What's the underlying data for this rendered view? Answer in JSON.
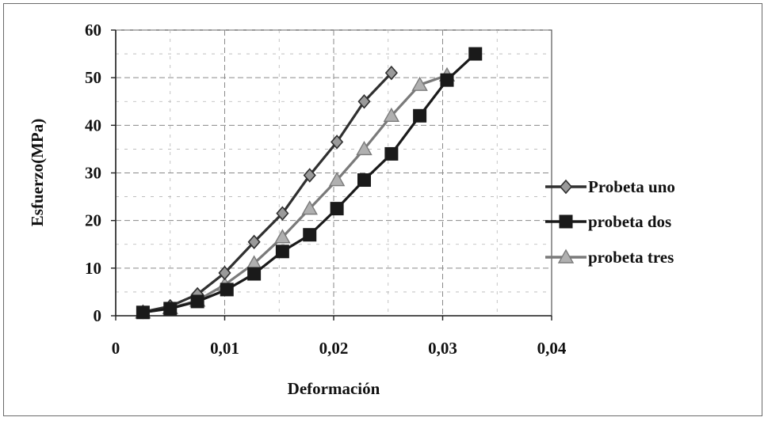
{
  "chart_data": {
    "type": "line",
    "title": "",
    "xlabel": "Deformación",
    "ylabel": "Esfuerzo(MPa)",
    "xlim": [
      0,
      0.04
    ],
    "ylim": [
      0,
      60
    ],
    "xticks": [
      0,
      0.01,
      0.02,
      0.03,
      0.04
    ],
    "xtick_labels": [
      "0",
      "0,01",
      "0,02",
      "0,03",
      "0,04"
    ],
    "yticks": [
      0,
      10,
      20,
      30,
      40,
      50,
      60
    ],
    "ytick_labels": [
      "0",
      "10",
      "20",
      "30",
      "40",
      "50",
      "60"
    ],
    "grid": true,
    "legend_position": "right",
    "series": [
      {
        "name": "Probeta uno",
        "marker": "diamond",
        "color": "#303030",
        "x": [
          0.0025,
          0.005,
          0.0075,
          0.01,
          0.0127,
          0.0153,
          0.0178,
          0.0203,
          0.0228,
          0.0253
        ],
        "y": [
          0.8,
          2.0,
          4.5,
          9.0,
          15.5,
          21.5,
          29.5,
          36.5,
          45.0,
          51.0
        ]
      },
      {
        "name": "probeta dos",
        "marker": "square",
        "color": "#1a1a1a",
        "x": [
          0.0025,
          0.005,
          0.0075,
          0.0102,
          0.0127,
          0.0153,
          0.0178,
          0.0203,
          0.0228,
          0.0253,
          0.0279,
          0.0304,
          0.033
        ],
        "y": [
          0.7,
          1.5,
          3.0,
          5.5,
          8.8,
          13.5,
          17.0,
          22.5,
          28.5,
          34.0,
          42.0,
          49.5,
          55.0
        ]
      },
      {
        "name": "probeta tres",
        "marker": "triangle",
        "color": "#7a7a7a",
        "x": [
          0.0025,
          0.005,
          0.0075,
          0.01,
          0.0127,
          0.0153,
          0.0178,
          0.0203,
          0.0228,
          0.0253,
          0.0279,
          0.0304
        ],
        "y": [
          0.7,
          1.6,
          3.2,
          6.5,
          11.0,
          16.5,
          22.5,
          28.5,
          35.0,
          42.0,
          48.5,
          50.5
        ]
      }
    ]
  }
}
